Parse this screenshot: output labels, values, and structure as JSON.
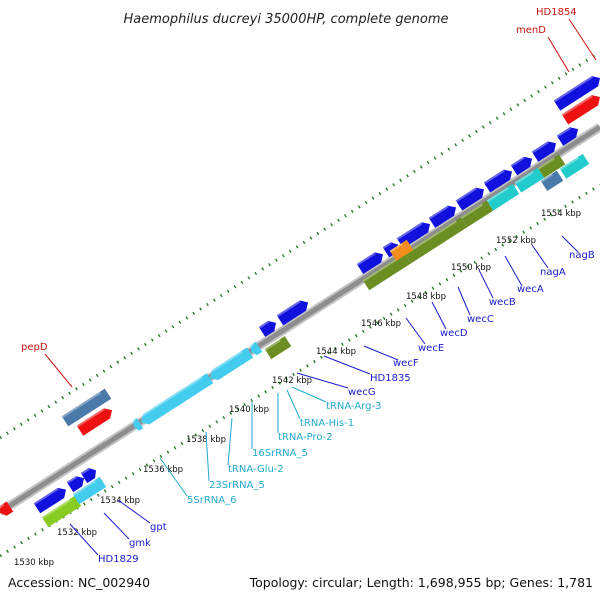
{
  "title": "Haemophilus ducreyi 35000HP, complete genome",
  "footer": {
    "accession": "Accession: NC_002940",
    "topology": "Topology: circular; Length: 1,698,955 bp; Genes: 1,781"
  },
  "colors": {
    "forward_gene": "#1111dd",
    "reverse_gene": "#ee1111",
    "rna": "#44ccee",
    "olive": "#6b8e23",
    "steel": "#4a7aaa",
    "teal": "#22cccc",
    "orange": "#f28c1a",
    "lime": "#88cc22",
    "backbone": "#888888",
    "tick_dot": "#2a7a2a",
    "label_blue": "#1a1acc",
    "label_red": "#cc1111",
    "label_cyan": "#22aacc"
  },
  "ticks": [
    "1530 kbp",
    "1532 kbp",
    "1534 kbp",
    "1536 kbp",
    "1538 kbp",
    "1540 kbp",
    "1542 kbp",
    "1544 kbp",
    "1546 kbp",
    "1548 kbp",
    "1550 kbp",
    "1552 kbp",
    "1554 kbp"
  ],
  "labels": {
    "HD1854": "HD1854",
    "menD": "menD",
    "pepD": "pepD",
    "nagB": "nagB",
    "nagA": "nagA",
    "wecA": "wecA",
    "wecB": "wecB",
    "wecC": "wecC",
    "wecD": "wecD",
    "wecE": "wecE",
    "wecF": "wecF",
    "HD1835": "HD1835",
    "wecG": "wecG",
    "tRNA_Arg_3": "tRNA-Arg-3",
    "tRNA_His_1": "tRNA-His-1",
    "tRNA_Pro_2": "tRNA-Pro-2",
    "SrRNA16_5": "16SrRNA_5",
    "tRNA_Glu_2": "tRNA-Glu-2",
    "SrRNA23_5": "23SrRNA_5",
    "SrRNA5_6": "5SrRNA_6",
    "gpt": "gpt",
    "gmk": "gmk",
    "HD1829": "HD1829"
  }
}
